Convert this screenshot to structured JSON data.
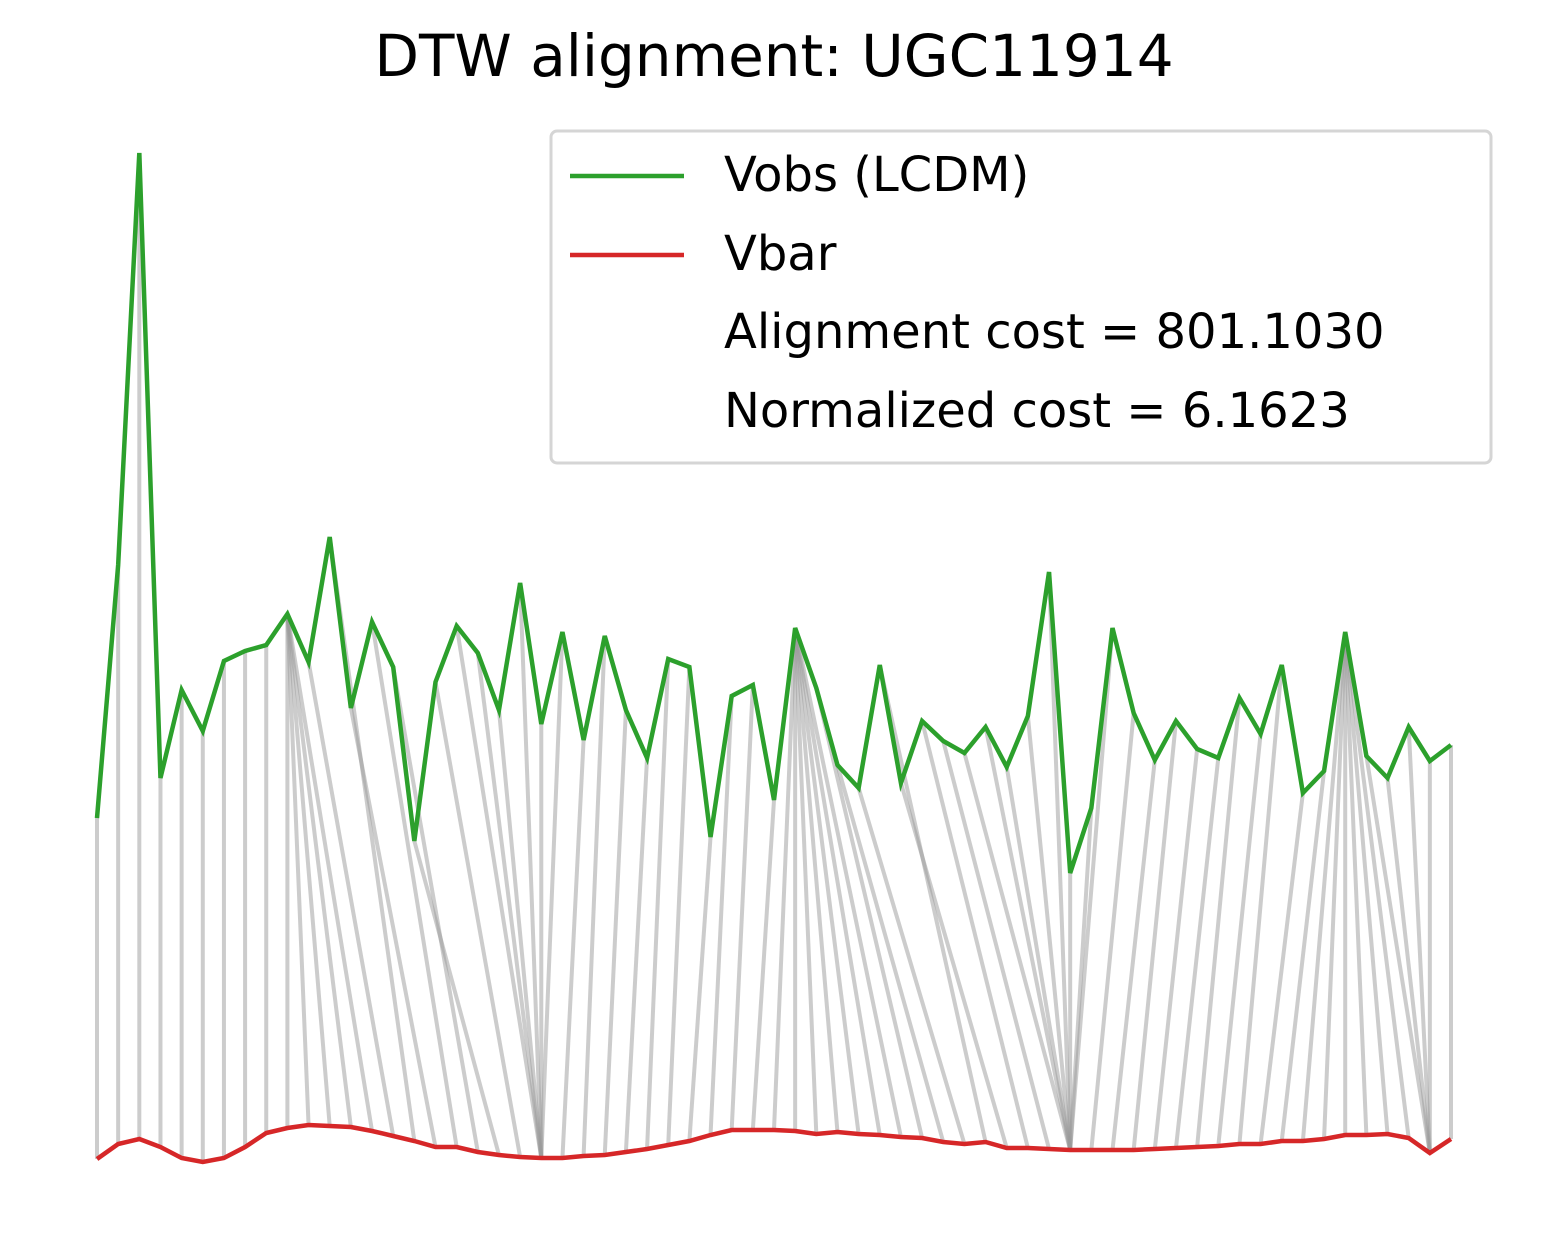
{
  "chart_data": {
    "type": "dtw",
    "title": "DTW alignment: UGC11914",
    "ylim": [
      0,
      104
    ],
    "series": [
      {
        "name": "Vobs (LCDM)",
        "color": "#2ca02c",
        "values": [
          36.2,
          61.5,
          102.7,
          40.2,
          49,
          44.9,
          51.9,
          52.9,
          53.5,
          56.6,
          51.8,
          64.3,
          47.2,
          55.8,
          51.3,
          33.9,
          49.8,
          55.4,
          52.7,
          47,
          59.7,
          45.6,
          54.8,
          44,
          54.4,
          47,
          42.2,
          52.1,
          51.3,
          34.3,
          48.4,
          49.5,
          38,
          55.2,
          49.2,
          41.5,
          39.2,
          51.5,
          39.7,
          45.9,
          43.9,
          42.7,
          45.3,
          41.3,
          46.4,
          60.8,
          30.7,
          37.2,
          55.2,
          46.7,
          42,
          45.9,
          43.1,
          42.2,
          48.2,
          44.6,
          51.5,
          38.7,
          40.9,
          54.8,
          42.4,
          40.2,
          45.3,
          41.9,
          43.5
        ]
      },
      {
        "name": "Vbar",
        "color": "#d62728",
        "values": [
          2.1,
          3.6,
          4.1,
          3.3,
          2.2,
          1.8,
          2.2,
          3.3,
          4.7,
          5.2,
          5.5,
          5.4,
          5.3,
          4.9,
          4.4,
          3.9,
          3.3,
          3.3,
          2.8,
          2.5,
          2.3,
          2.2,
          2.2,
          2.4,
          2.5,
          2.8,
          3.1,
          3.5,
          3.9,
          4.5,
          5,
          5,
          5,
          4.9,
          4.6,
          4.8,
          4.6,
          4.5,
          4.3,
          4.2,
          3.8,
          3.6,
          3.8,
          3.2,
          3.2,
          3.1,
          3,
          3,
          3,
          3,
          3.1,
          3.2,
          3.3,
          3.4,
          3.6,
          3.6,
          3.9,
          3.9,
          4.1,
          4.5,
          4.5,
          4.6,
          4.2,
          2.7,
          4.1
        ]
      }
    ],
    "path": [
      [
        0,
        0
      ],
      [
        1,
        1
      ],
      [
        2,
        2
      ],
      [
        3,
        3
      ],
      [
        4,
        4
      ],
      [
        5,
        5
      ],
      [
        6,
        6
      ],
      [
        7,
        7
      ],
      [
        8,
        8
      ],
      [
        9,
        9
      ],
      [
        9,
        10
      ],
      [
        9,
        11
      ],
      [
        9,
        12
      ],
      [
        9,
        13
      ],
      [
        10,
        14
      ],
      [
        11,
        15
      ],
      [
        12,
        16
      ],
      [
        13,
        17
      ],
      [
        14,
        18
      ],
      [
        15,
        19
      ],
      [
        16,
        20
      ],
      [
        17,
        21
      ],
      [
        18,
        21
      ],
      [
        19,
        21
      ],
      [
        20,
        21
      ],
      [
        21,
        21
      ],
      [
        22,
        21
      ],
      [
        23,
        22
      ],
      [
        24,
        23
      ],
      [
        25,
        24
      ],
      [
        26,
        25
      ],
      [
        27,
        26
      ],
      [
        28,
        27
      ],
      [
        29,
        28
      ],
      [
        30,
        29
      ],
      [
        31,
        30
      ],
      [
        32,
        31
      ],
      [
        33,
        32
      ],
      [
        33,
        33
      ],
      [
        33,
        34
      ],
      [
        33,
        35
      ],
      [
        33,
        36
      ],
      [
        33,
        37
      ],
      [
        33,
        38
      ],
      [
        34,
        39
      ],
      [
        35,
        40
      ],
      [
        36,
        41
      ],
      [
        37,
        42
      ],
      [
        38,
        43
      ],
      [
        39,
        44
      ],
      [
        40,
        45
      ],
      [
        41,
        46
      ],
      [
        42,
        46
      ],
      [
        43,
        46
      ],
      [
        44,
        46
      ],
      [
        45,
        46
      ],
      [
        46,
        46
      ],
      [
        47,
        46
      ],
      [
        48,
        46
      ],
      [
        49,
        47
      ],
      [
        50,
        48
      ],
      [
        51,
        49
      ],
      [
        52,
        50
      ],
      [
        53,
        51
      ],
      [
        54,
        52
      ],
      [
        55,
        53
      ],
      [
        56,
        54
      ],
      [
        57,
        55
      ],
      [
        58,
        56
      ],
      [
        59,
        57
      ],
      [
        59,
        58
      ],
      [
        59,
        59
      ],
      [
        59,
        60
      ],
      [
        59,
        61
      ],
      [
        59,
        62
      ],
      [
        60,
        63
      ],
      [
        61,
        63
      ],
      [
        62,
        63
      ],
      [
        63,
        63
      ],
      [
        64,
        64
      ]
    ],
    "annotations": [
      "Alignment cost = 801.1030",
      "Normalized cost = 6.1623"
    ]
  }
}
